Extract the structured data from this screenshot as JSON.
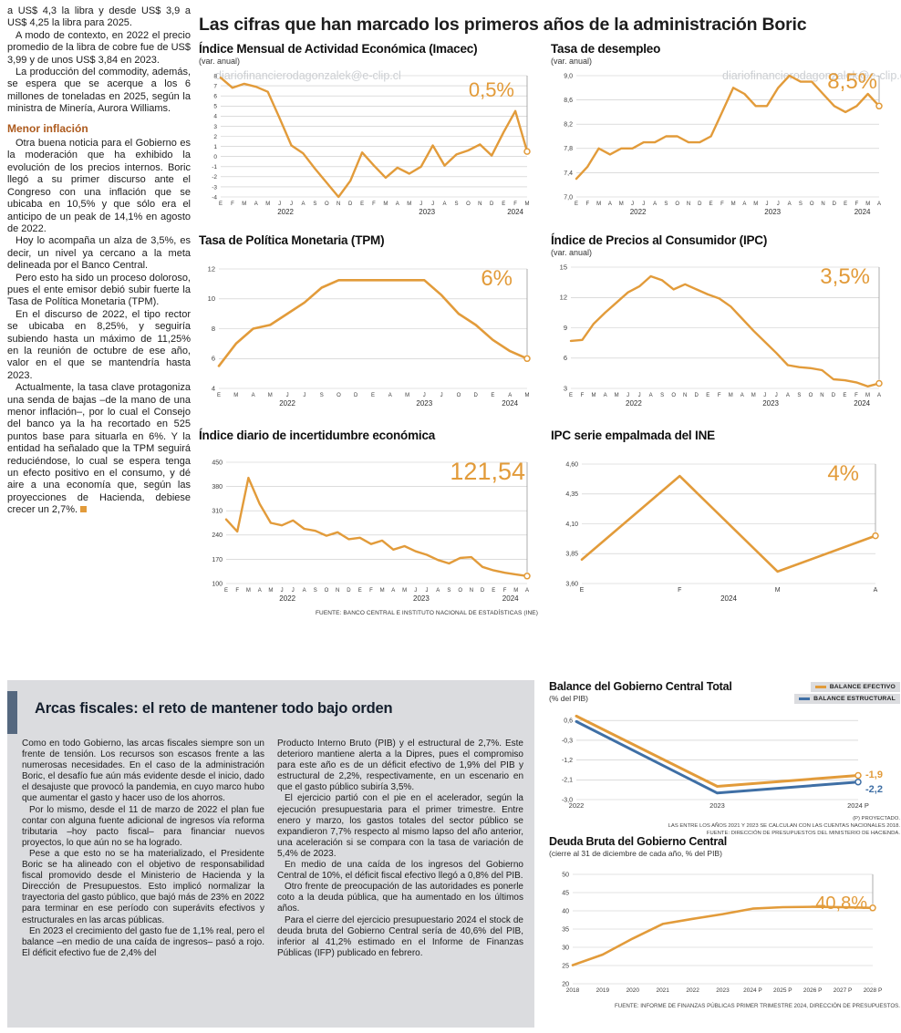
{
  "watermark": "diariofinancierodagonzalek@e-clip.cl",
  "main_title": "Las cifras que han marcado los primeros años de la administración Boric",
  "left_column": {
    "paragraphs_top": [
      "a US$ 4,3 la libra y desde US$ 3,9 a US$ 4,25 la libra para 2025.",
      "A modo de contexto, en 2022 el precio promedio de la libra de cobre fue de US$ 3,99 y de unos US$ 3,84 en 2023.",
      "La producción del commodity, además, se espera que se acerque a los 6 millones de toneladas en 2025, según la ministra de Minería, Aurora Williams."
    ],
    "subhead": "Menor inflación",
    "paragraphs_bottom": [
      "Otra buena noticia para el Gobierno es la moderación que ha exhibido la evolución de los precios internos. Boric llegó a su primer discurso ante el Congreso con una inflación que se ubicaba en 10,5% y que sólo era el anticipo de un peak de 14,1% en agosto de 2022.",
      "Hoy lo acompaña un alza de 3,5%, es decir, un nivel ya cercano a la meta delineada por el Banco Central.",
      "Pero esto ha sido un proceso doloroso, pues el ente emisor debió subir fuerte la Tasa de Política Monetaria (TPM).",
      "En el discurso de 2022, el tipo rector se ubicaba en 8,25%, y seguiría subiendo hasta un máximo de 11,25% en la reunión de octubre de ese año, valor en el que se mantendría hasta 2023.",
      "Actualmente, la tasa clave protagoniza una senda de bajas –de la mano de una menor inflación–, por lo cual el Consejo del banco ya la ha recortado en 525 puntos base para situarla en 6%. Y la entidad ha señalado que la TPM seguirá reduciéndose, lo cual se espera tenga un efecto positivo en el consumo, y dé aire a una economía que, según las proyecciones de Hacienda, debiese crecer un 2,7%."
    ]
  },
  "fiscal_box": {
    "title": "Arcas fiscales: el reto de mantener todo bajo orden",
    "col1": [
      "Como en todo Gobierno, las arcas fiscales siempre son un frente de tensión. Los recursos son escasos frente a las numerosas necesidades. En el caso de la administración Boric, el desafío fue aún más evidente desde el inicio, dado el desajuste que provocó la pandemia, en cuyo marco hubo que aumentar el gasto y hacer uso de los ahorros.",
      "Por lo mismo, desde el 11 de marzo de 2022 el plan fue contar con alguna fuente adicional de ingresos vía reforma tributaria –hoy pacto fiscal– para financiar nuevos proyectos, lo que aún no se ha logrado.",
      "Pese a que esto no se ha materializado, el Presidente Boric se ha alineado con el objetivo de responsabilidad fiscal promovido desde el Ministerio de Hacienda y la Dirección de Presupuestos. Esto implicó normalizar la trayectoria del gasto público, que bajó más de 23% en 2022 para terminar en ese período con superávits efectivos y estructurales en las arcas públicas.",
      "En 2023 el crecimiento del gasto fue de 1,1% real, pero el balance –en medio de una caída de ingresos– pasó a rojo. El déficit efectivo fue de 2,4% del"
    ],
    "col2": [
      "Producto Interno Bruto (PIB) y el estructural de 2,7%. Este deterioro mantiene alerta a la Dipres, pues el compromiso para este año es de un déficit efectivo de 1,9% del PIB y estructural de 2,2%, respectivamente, en un escenario en que el gasto público subiría 3,5%.",
      "El ejercicio partió con el pie en el acelerador, según la ejecución presupuestaria para el primer trimestre. Entre enero y marzo, los gastos totales del sector público se expandieron 7,7% respecto al mismo lapso del año anterior, una aceleración si se compara con la tasa de variación de 5,4% de 2023.",
      "En medio de una caída de los ingresos del Gobierno Central de 10%, el déficit fiscal efectivo llegó a 0,8% del PIB.",
      "Otro frente de preocupación de las autoridades es ponerle coto a la deuda pública, que ha aumentado en los últimos años.",
      "Para el cierre del ejercicio presupuestario 2024 el stock de deuda bruta del Gobierno Central sería de 40,6% del PIB, inferior al 41,2% estimado en el Informe de Finanzas Públicas (IFP) publicado en febrero."
    ]
  },
  "chart_data": [
    {
      "id": "imacec",
      "type": "line",
      "title": "Índice Mensual de Actividad Económica (Imacec)",
      "subtitle": "(var. anual)",
      "value_label": "0,5%",
      "color": "#e29b3a",
      "ylim": [
        -4,
        8
      ],
      "yticks": [
        8,
        7,
        6,
        5,
        4,
        3,
        2,
        1,
        0,
        -1,
        -2,
        -3,
        -4
      ],
      "x_labels": [
        "E",
        "F",
        "M",
        "A",
        "M",
        "J",
        "J",
        "A",
        "S",
        "O",
        "N",
        "D",
        "E",
        "F",
        "M",
        "A",
        "M",
        "J",
        "J",
        "A",
        "S",
        "O",
        "N",
        "D",
        "E",
        "F",
        "M"
      ],
      "year_labels": [
        {
          "text": "2022",
          "index": 5.5
        },
        {
          "text": "2023",
          "index": 17.5
        },
        {
          "text": "2024",
          "index": 25
        }
      ],
      "values": [
        7.8,
        6.8,
        7.2,
        6.9,
        6.4,
        3.8,
        1.1,
        0.3,
        -1.2,
        -2.6,
        -4.0,
        -2.4,
        0.4,
        -0.9,
        -2.1,
        -1.1,
        -1.7,
        -1.0,
        1.1,
        -0.9,
        0.2,
        0.6,
        1.2,
        0.1,
        2.4,
        4.5,
        0.5
      ]
    },
    {
      "id": "desempleo",
      "type": "line",
      "title": "Tasa de desempleo",
      "subtitle": "(var. anual)",
      "value_label": "8,5%",
      "color": "#e29b3a",
      "ylim": [
        7.0,
        9.0
      ],
      "yticks": [
        9.0,
        8.6,
        8.2,
        7.8,
        7.4,
        7.0
      ],
      "ytick_labels": [
        "9,0",
        "8,6",
        "8,2",
        "7,8",
        "7,4",
        "7,0"
      ],
      "x_labels": [
        "E",
        "F",
        "M",
        "A",
        "M",
        "J",
        "J",
        "A",
        "S",
        "O",
        "N",
        "D",
        "E",
        "F",
        "M",
        "A",
        "M",
        "J",
        "J",
        "A",
        "S",
        "O",
        "N",
        "D",
        "E",
        "F",
        "M",
        "A"
      ],
      "year_labels": [
        {
          "text": "2022",
          "index": 5.5
        },
        {
          "text": "2023",
          "index": 17.5
        },
        {
          "text": "2024",
          "index": 25.5
        }
      ],
      "values": [
        7.3,
        7.5,
        7.8,
        7.7,
        7.8,
        7.8,
        7.9,
        7.9,
        8.0,
        8.0,
        7.9,
        7.9,
        8.0,
        8.4,
        8.8,
        8.7,
        8.5,
        8.5,
        8.8,
        9.0,
        8.9,
        8.9,
        8.7,
        8.5,
        8.4,
        8.5,
        8.7,
        8.5
      ]
    },
    {
      "id": "tpm",
      "type": "line",
      "title": "Tasa de Política Monetaria (TPM)",
      "subtitle": "",
      "value_label": "6%",
      "color": "#e29b3a",
      "ylim": [
        4,
        12
      ],
      "yticks": [
        12,
        10,
        8,
        6,
        4
      ],
      "x_labels": [
        "E",
        "M",
        "A",
        "M",
        "J",
        "J",
        "S",
        "O",
        "D",
        "E",
        "A",
        "M",
        "J",
        "J",
        "O",
        "D",
        "E",
        "A",
        "M"
      ],
      "year_labels": [
        {
          "text": "2022",
          "index": 4
        },
        {
          "text": "2023",
          "index": 12
        },
        {
          "text": "2024",
          "index": 17
        }
      ],
      "values": [
        5.5,
        7.0,
        8.0,
        8.25,
        9.0,
        9.75,
        10.75,
        11.25,
        11.25,
        11.25,
        11.25,
        11.25,
        11.25,
        10.25,
        9.0,
        8.25,
        7.25,
        6.5,
        6.0
      ]
    },
    {
      "id": "ipc",
      "type": "line",
      "title": "Índice de Precios al Consumidor (IPC)",
      "subtitle": "(var. anual)",
      "value_label": "3,5%",
      "color": "#e29b3a",
      "ylim": [
        3,
        15
      ],
      "yticks": [
        15,
        12,
        9,
        6,
        3
      ],
      "x_labels": [
        "E",
        "F",
        "M",
        "A",
        "M",
        "J",
        "J",
        "A",
        "S",
        "O",
        "N",
        "D",
        "E",
        "F",
        "M",
        "A",
        "M",
        "J",
        "J",
        "A",
        "S",
        "O",
        "N",
        "D",
        "E",
        "F",
        "M",
        "A"
      ],
      "year_labels": [
        {
          "text": "2022",
          "index": 5.5
        },
        {
          "text": "2023",
          "index": 17.5
        },
        {
          "text": "2024",
          "index": 25.5
        }
      ],
      "values": [
        7.7,
        7.8,
        9.4,
        10.5,
        11.5,
        12.5,
        13.1,
        14.1,
        13.7,
        12.8,
        13.3,
        12.8,
        12.3,
        11.9,
        11.1,
        9.9,
        8.7,
        7.6,
        6.5,
        5.3,
        5.1,
        5.0,
        4.8,
        3.9,
        3.8,
        3.6,
        3.2,
        3.5
      ]
    },
    {
      "id": "incert",
      "type": "line",
      "title": "Índice diario de incertidumbre económica",
      "subtitle": "",
      "value_label": "121,54",
      "color": "#e29b3a",
      "ylim": [
        100,
        450
      ],
      "yticks": [
        450,
        380,
        310,
        240,
        170,
        100
      ],
      "x_labels": [
        "E",
        "F",
        "M",
        "A",
        "M",
        "J",
        "J",
        "A",
        "S",
        "O",
        "N",
        "D",
        "E",
        "F",
        "M",
        "A",
        "M",
        "J",
        "J",
        "A",
        "S",
        "O",
        "N",
        "D",
        "E",
        "F",
        "M",
        "A"
      ],
      "year_labels": [
        {
          "text": "2022",
          "index": 5.5
        },
        {
          "text": "2023",
          "index": 17.5
        },
        {
          "text": "2024",
          "index": 25.5
        }
      ],
      "values": [
        285,
        250,
        405,
        330,
        275,
        268,
        282,
        258,
        252,
        238,
        248,
        228,
        232,
        214,
        224,
        198,
        208,
        193,
        183,
        168,
        158,
        174,
        176,
        148,
        138,
        131,
        126,
        121.54
      ],
      "source": "FUENTE: BANCO CENTRAL E INSTITUTO NACIONAL DE ESTADÍSTICAS (INE)"
    },
    {
      "id": "ipcine",
      "type": "line",
      "title": "IPC serie empalmada del INE",
      "subtitle": "",
      "value_label": "4%",
      "color": "#e29b3a",
      "ylim": [
        3.6,
        4.6
      ],
      "yticks": [
        4.6,
        4.35,
        4.1,
        3.85,
        3.6
      ],
      "ytick_labels": [
        "4,60",
        "4,35",
        "4,10",
        "3,85",
        "3,60"
      ],
      "x_labels": [
        "E",
        "F",
        "M",
        "A"
      ],
      "year_labels": [
        {
          "text": "2024",
          "index": 1.5
        }
      ],
      "values": [
        3.8,
        4.5,
        3.7,
        4.0
      ]
    },
    {
      "id": "balance",
      "type": "line",
      "title": "Balance del Gobierno Central Total",
      "subtitle": "(% del PIB)",
      "ylim": [
        -3.0,
        0.9
      ],
      "yticks": [
        0.6,
        -0.3,
        -1.2,
        -2.1,
        -3.0
      ],
      "ytick_labels": [
        "0,6",
        "-0,3",
        "-1,2",
        "-2,1",
        "-3,0"
      ],
      "x_labels": [
        "2022",
        "2023",
        "2024 P"
      ],
      "series": [
        {
          "name": "BALANCE EFECTIVO",
          "color": "#e29b3a",
          "values": [
            0.8,
            -2.4,
            -1.9
          ],
          "end_label": "-1,9"
        },
        {
          "name": "BALANCE ESTRUCTURAL",
          "color": "#3f6fa5",
          "values": [
            0.55,
            -2.7,
            -2.2
          ],
          "end_label": "-2,2"
        }
      ],
      "footnotes": [
        "(P) PROYECTADO.",
        "LAS ENTRE LOS AÑOS 2021 Y 2023 SE CALCULAN  CON LAS CUENTAS NACIONALES 2018.",
        "FUENTE: DIRECCIÓN DE PRESUPUESTOS DEL MINISTERIO DE HACIENDA."
      ]
    },
    {
      "id": "deuda",
      "type": "line",
      "title": "Deuda Bruta del Gobierno Central",
      "subtitle": "(cierre al 31 de diciembre de cada año, % del PIB)",
      "value_label": "40,8%",
      "color": "#e29b3a",
      "ylim": [
        20,
        50
      ],
      "yticks": [
        50,
        45,
        40,
        35,
        30,
        25,
        20
      ],
      "x_labels": [
        "2018",
        "2019",
        "2020",
        "2021",
        "2022",
        "2023",
        "2024 P",
        "2025 P",
        "2026 P",
        "2027 P",
        "2028 P"
      ],
      "values": [
        25.1,
        28.0,
        32.4,
        36.4,
        37.8,
        39.1,
        40.6,
        41.0,
        41.1,
        41.0,
        40.8
      ],
      "source": "FUENTE: INFORME DE FINANZAS PÚBLICAS PRIMER TRIMESTRE 2024, DIRECCIÓN DE PRESUPUESTOS."
    }
  ]
}
